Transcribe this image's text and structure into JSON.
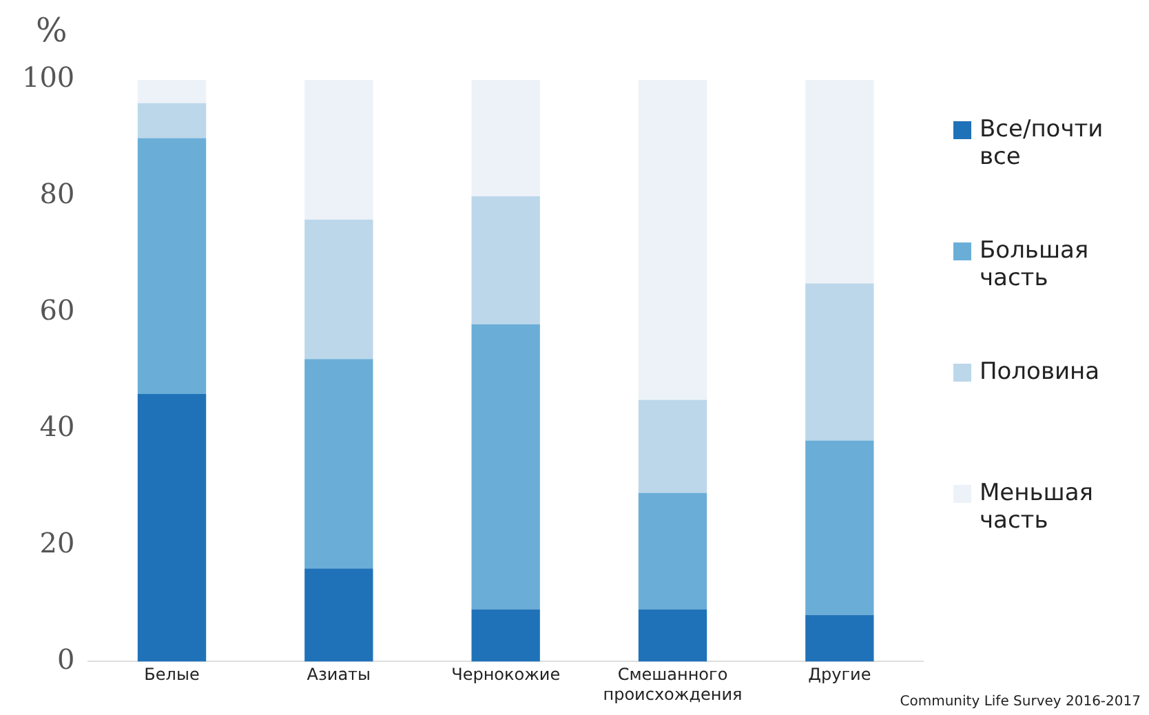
{
  "chart_data": {
    "type": "bar",
    "stacked": true,
    "ylabel": "%",
    "categories": [
      "Белые",
      "Азиаты",
      "Чернокожие",
      "Смешанного происхождения",
      "Другие"
    ],
    "series": [
      {
        "name": "Все/почти все",
        "color": "#1f72b8",
        "values": [
          46,
          16,
          9,
          9,
          8
        ]
      },
      {
        "name": "Большая часть",
        "color": "#6aaed8",
        "values": [
          44,
          36,
          49,
          20,
          30
        ]
      },
      {
        "name": "Половина",
        "color": "#bcd7ea",
        "values": [
          6,
          24,
          22,
          16,
          27
        ]
      },
      {
        "name": "Меньшая часть",
        "color": "#edf2f8",
        "values": [
          4,
          24,
          20,
          55,
          35
        ]
      }
    ],
    "ylim": [
      0,
      100
    ],
    "yticks": [
      0,
      20,
      40,
      60,
      80,
      100
    ],
    "grid": false,
    "legend": "right",
    "annotations": [
      "Community Life Survey 2016-2017"
    ]
  }
}
